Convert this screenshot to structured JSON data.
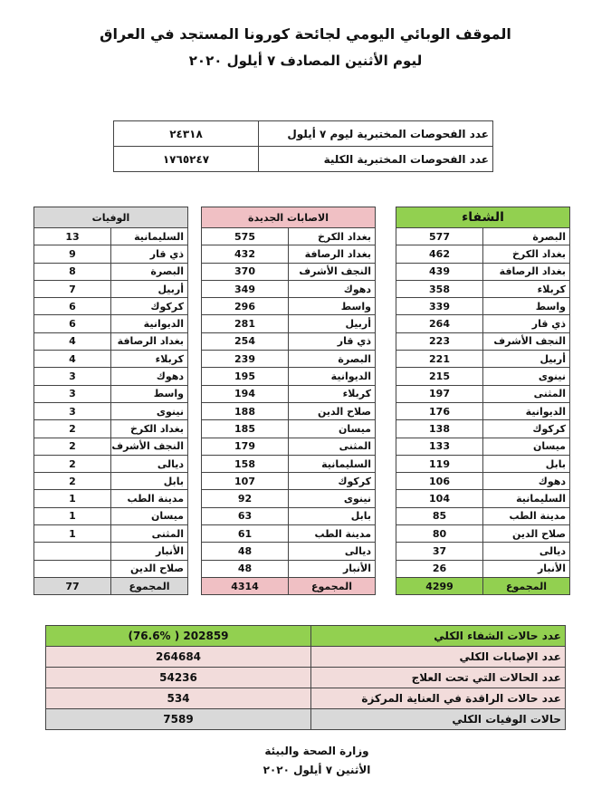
{
  "header": {
    "title": "الموقف الوبائي اليومي لجائحة كورونا المستجد في العراق",
    "subtitle": "ليوم الأثنين المصادف ٧ أيلول ٢٠٢٠"
  },
  "tests": {
    "rows": [
      [
        "عدد الفحوصات المختبرية  ليوم ٧ أيلول",
        "٢٤٣١٨"
      ],
      [
        "عدد الفحوصات المختبرية الكلية",
        "١٧٦٥٢٤٧"
      ]
    ]
  },
  "recovered": {
    "header": "الشفاء",
    "rows": [
      [
        "البصرة",
        577
      ],
      [
        "بغداد الكرخ",
        462
      ],
      [
        "بغداد الرصافة",
        439
      ],
      [
        "كربلاء",
        358
      ],
      [
        "واسط",
        339
      ],
      [
        "ذي قار",
        264
      ],
      [
        "النجف الأشرف",
        223
      ],
      [
        "أربيل",
        221
      ],
      [
        "نينوى",
        215
      ],
      [
        "المثنى",
        197
      ],
      [
        "الديوانية",
        176
      ],
      [
        "كركوك",
        138
      ],
      [
        "ميسان",
        133
      ],
      [
        "بابل",
        119
      ],
      [
        "دهوك",
        106
      ],
      [
        "السليمانية",
        104
      ],
      [
        "مدينة الطب",
        85
      ],
      [
        "صلاح الدين",
        80
      ],
      [
        "ديالى",
        37
      ],
      [
        "الأنبار",
        26
      ]
    ],
    "total": {
      "label": "المجموع",
      "value": 4299
    }
  },
  "new_cases": {
    "header": "الاصابات الجديدة",
    "rows": [
      [
        "بغداد الكرخ",
        575
      ],
      [
        "بغداد الرصافة",
        432
      ],
      [
        "النجف الأشرف",
        370
      ],
      [
        "دهوك",
        349
      ],
      [
        "واسط",
        296
      ],
      [
        "أربيل",
        281
      ],
      [
        "ذي قار",
        254
      ],
      [
        "البصرة",
        239
      ],
      [
        "الديوانية",
        195
      ],
      [
        "كربلاء",
        194
      ],
      [
        "صلاح الدين",
        188
      ],
      [
        "ميسان",
        185
      ],
      [
        "المثنى",
        179
      ],
      [
        "السليمانية",
        158
      ],
      [
        "كركوك",
        107
      ],
      [
        "نينوى",
        92
      ],
      [
        "بابل",
        63
      ],
      [
        "مدينة الطب",
        61
      ],
      [
        "ديالى",
        48
      ],
      [
        "الأنبار",
        48
      ]
    ],
    "total": {
      "label": "المجموع",
      "value": 4314
    }
  },
  "deaths": {
    "header": "الوفيات",
    "rows": [
      [
        "السليمانية",
        13
      ],
      [
        "ذي قار",
        9
      ],
      [
        "البصرة",
        8
      ],
      [
        "أربيل",
        7
      ],
      [
        "كركوك",
        6
      ],
      [
        "الديوانية",
        6
      ],
      [
        "بغداد الرصافة",
        4
      ],
      [
        "كربلاء",
        4
      ],
      [
        "دهوك",
        3
      ],
      [
        "واسط",
        3
      ],
      [
        "نينوى",
        3
      ],
      [
        "بغداد الكرخ",
        2
      ],
      [
        "النجف الأشرف",
        2
      ],
      [
        "ديالى",
        2
      ],
      [
        "بابل",
        2
      ],
      [
        "مدينة الطب",
        1
      ],
      [
        "ميسان",
        1
      ],
      [
        "المثنى",
        1
      ],
      [
        "الأنبار",
        null
      ],
      [
        "صلاح الدين",
        null
      ]
    ],
    "total": {
      "label": "المجموع",
      "value": 77
    }
  },
  "summary": {
    "rows": [
      [
        "عدد حالات الشفاء الكلي",
        "(76.6%  )   202859"
      ],
      [
        "عدد الإصابات الكلي",
        264684
      ],
      [
        "عدد الحالات التي تحت العلاج",
        54236
      ],
      [
        "عدد حالات الراقدة في العناية المركزة",
        534
      ],
      [
        "حالات الوفيات الكلي",
        7589
      ]
    ]
  },
  "footer": {
    "ministry": "وزارة الصحة والبيئة",
    "date": "الأثنين  ٧  أيلول ٢٠٢٠"
  }
}
